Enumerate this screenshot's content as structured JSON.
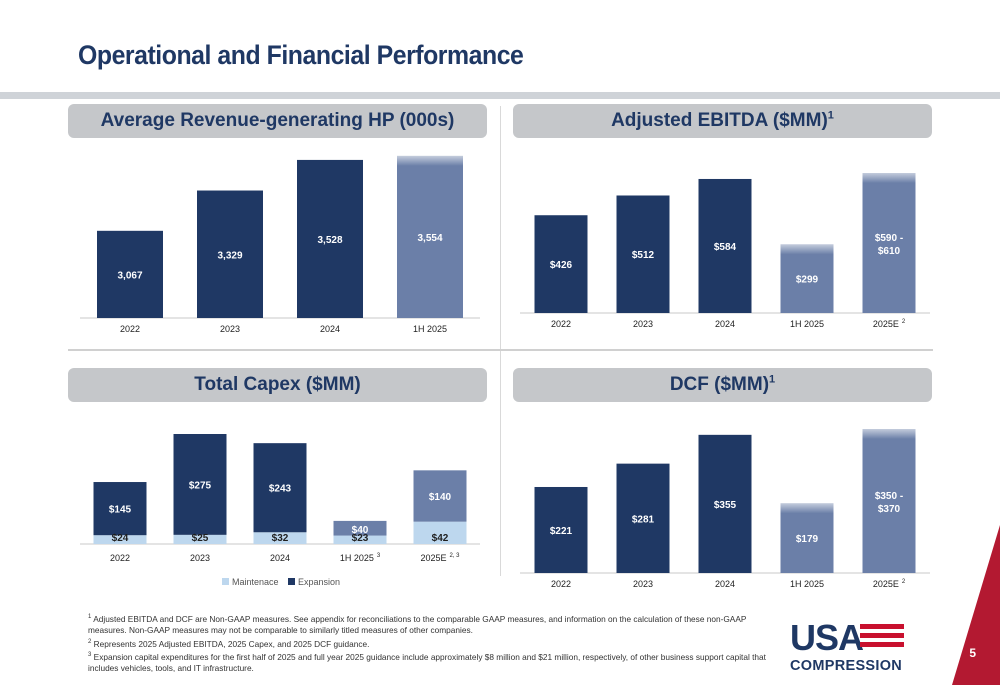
{
  "page": {
    "title": "Operational and Financial Performance",
    "page_number": "5"
  },
  "panels": {
    "hp": {
      "heading": "Average Revenue-generating HP (000s)"
    },
    "ebitda": {
      "heading": "Adjusted EBITDA ($MM)",
      "heading_sup": "1"
    },
    "capex": {
      "heading": "Total Capex ($MM)"
    },
    "dcf": {
      "heading": "DCF ($MM)",
      "heading_sup": "1"
    }
  },
  "colors": {
    "navy": "#1f3864",
    "projected": "#6b7fa8",
    "maintenance": "#bdd7ee"
  },
  "chart_data": [
    {
      "id": "hp",
      "type": "bar",
      "categories": [
        "2022",
        "2023",
        "2024",
        "1H 2025"
      ],
      "category_sups": [
        "",
        "",
        "",
        ""
      ],
      "values": [
        3067,
        3329,
        3528,
        3554
      ],
      "labels": [
        "3,067",
        "3,329",
        "3,528",
        "3,554"
      ],
      "highlight": [
        false,
        false,
        false,
        true
      ],
      "ylim": [
        2500,
        3560
      ]
    },
    {
      "id": "ebitda",
      "type": "bar",
      "categories": [
        "2022",
        "2023",
        "2024",
        "1H 2025",
        "2025E"
      ],
      "category_sups": [
        "",
        "",
        "",
        "",
        "2"
      ],
      "values": [
        426,
        512,
        584,
        299,
        610
      ],
      "labels": [
        "$426",
        "$512",
        "$584",
        "$299",
        "$590 - $610"
      ],
      "highlight": [
        false,
        false,
        false,
        true,
        true
      ],
      "ylim": [
        0,
        610
      ]
    },
    {
      "id": "capex",
      "type": "bar",
      "stacked": true,
      "categories": [
        "2022",
        "2023",
        "2024",
        "1H 2025",
        "2025E"
      ],
      "category_sups": [
        "",
        "",
        "",
        "3",
        "2, 3"
      ],
      "series": [
        {
          "name": "Maintenace",
          "values": [
            24,
            25,
            32,
            23,
            42
          ],
          "labels": [
            "$24",
            "$25",
            "$32",
            "$23",
            "$42"
          ]
        },
        {
          "name": "Expansion",
          "values": [
            145,
            275,
            243,
            40,
            140
          ],
          "labels": [
            "$145",
            "$275",
            "$243",
            "$40",
            "$140"
          ]
        }
      ],
      "highlight": [
        false,
        false,
        false,
        true,
        true
      ],
      "ylim": [
        0,
        300
      ]
    },
    {
      "id": "dcf",
      "type": "bar",
      "categories": [
        "2022",
        "2023",
        "2024",
        "1H 2025",
        "2025E"
      ],
      "category_sups": [
        "",
        "",
        "",
        "",
        "2"
      ],
      "values": [
        221,
        281,
        355,
        179,
        370
      ],
      "labels": [
        "$221",
        "$281",
        "$355",
        "$179",
        "$350 - $370"
      ],
      "highlight": [
        false,
        false,
        false,
        true,
        true
      ],
      "ylim": [
        0,
        370
      ]
    }
  ],
  "footnotes": [
    {
      "sup": "1",
      "text": "Adjusted EBITDA and DCF are Non-GAAP measures. See appendix for reconciliations to the comparable GAAP measures, and information on the calculation of these non-GAAP measures. Non-GAAP measures may not be comparable to similarly titled measures of other companies."
    },
    {
      "sup": "2",
      "text": "Represents 2025 Adjusted EBITDA, 2025 Capex, and 2025 DCF guidance."
    },
    {
      "sup": "3",
      "text": "Expansion capital expenditures for the first half of 2025 and full year 2025 guidance include approximately $8 million and $21 million, respectively, of other business support capital that includes vehicles, tools, and IT infrastructure."
    }
  ],
  "logo": {
    "top": "USA",
    "bottom": "COMPRESSION"
  }
}
